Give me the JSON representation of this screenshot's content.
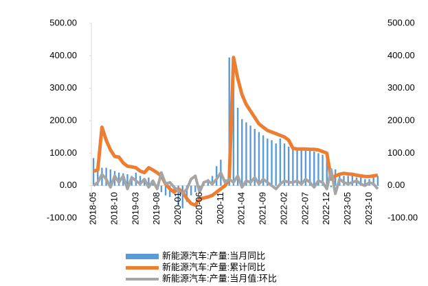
{
  "chart_data": {
    "type": "bar-line",
    "categories": [
      "2018-05",
      null,
      null,
      null,
      null,
      "2018-10",
      null,
      null,
      null,
      null,
      "2019-03",
      null,
      null,
      null,
      null,
      "2019-08",
      null,
      null,
      null,
      null,
      "2020-01",
      null,
      null,
      null,
      null,
      "2020-06",
      null,
      null,
      null,
      null,
      "2020-11",
      null,
      null,
      null,
      null,
      "2021-04",
      null,
      null,
      null,
      null,
      "2021-09",
      null,
      null,
      null,
      null,
      "2022-02",
      null,
      null,
      null,
      null,
      "2022-07",
      null,
      null,
      null,
      null,
      "2022-12",
      null,
      null,
      null,
      null,
      "2023-05",
      null,
      null,
      null,
      null,
      "2023-10",
      null,
      null
    ],
    "series": [
      {
        "name": "新能源汽车:产量:当月同比",
        "kind": "bar",
        "color": "#5b9bd5",
        "values": [
          85,
          60,
          55,
          55,
          50,
          45,
          40,
          38,
          35,
          30,
          40,
          30,
          20,
          25,
          10,
          -10,
          -20,
          -30,
          -35,
          -25,
          -60,
          -70,
          -50,
          -30,
          -20,
          -15,
          10,
          20,
          30,
          60,
          80,
          20,
          395,
          315,
          240,
          205,
          195,
          185,
          175,
          165,
          155,
          145,
          140,
          130,
          145,
          130,
          120,
          115,
          110,
          110,
          110,
          110,
          105,
          100,
          95,
          90,
          -5,
          50,
          35,
          30,
          30,
          30,
          25,
          25,
          20,
          20,
          30,
          30
        ]
      },
      {
        "name": "新能源汽车:产量:累计同比",
        "kind": "line",
        "color": "#ed7d31",
        "width": 5,
        "values": [
          45,
          48,
          180,
          140,
          110,
          90,
          88,
          70,
          60,
          58,
          55,
          45,
          40,
          55,
          48,
          40,
          30,
          5,
          -10,
          -20,
          -10,
          -20,
          -40,
          -55,
          -60,
          -40,
          -38,
          -35,
          -30,
          -20,
          -10,
          0,
          20,
          395,
          330,
          280,
          250,
          230,
          210,
          190,
          180,
          170,
          165,
          160,
          155,
          150,
          140,
          115,
          113,
          113,
          113,
          112,
          112,
          110,
          105,
          100,
          20,
          30,
          35,
          38,
          36,
          35,
          32,
          30,
          28,
          28,
          30,
          32
        ]
      },
      {
        "name": "新能源汽车:产量:当月值:环比",
        "kind": "line",
        "color": "#a5a5a5",
        "width": 4,
        "values": [
          0,
          10,
          35,
          20,
          -5,
          30,
          10,
          30,
          -10,
          25,
          15,
          5,
          20,
          -5,
          15,
          -10,
          40,
          5,
          10,
          -5,
          -15,
          -25,
          -10,
          20,
          30,
          -20,
          10,
          15,
          5,
          20,
          40,
          10,
          20,
          10,
          30,
          -5,
          15,
          10,
          25,
          5,
          20,
          10,
          0,
          -10,
          5,
          15,
          10,
          10,
          15,
          5,
          20,
          10,
          -5,
          15,
          10,
          -10,
          50,
          -25,
          20,
          10,
          5,
          10,
          15,
          5,
          0,
          10,
          5,
          -10
        ]
      }
    ],
    "ylim": [
      -100,
      500
    ],
    "yticks": [
      {
        "value": -100,
        "label": "-100.00"
      },
      {
        "value": 0,
        "label": "0.00"
      },
      {
        "value": 100,
        "label": "100.00"
      },
      {
        "value": 200,
        "label": "200.00"
      },
      {
        "value": 300,
        "label": "300.00"
      },
      {
        "value": 400,
        "label": "400.00"
      },
      {
        "value": 500,
        "label": "500.00"
      }
    ]
  }
}
